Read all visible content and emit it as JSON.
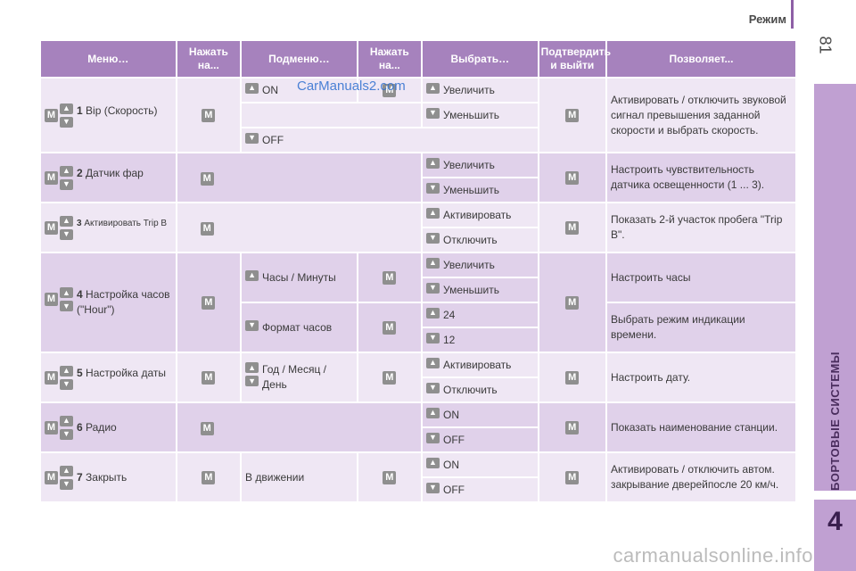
{
  "header": {
    "title": "Режим",
    "page_number": "81"
  },
  "side": {
    "label": "БОРТОВЫЕ СИСТЕМЫ",
    "chapter": "4"
  },
  "watermark": "CarManuals2.com",
  "footer": "carmanualsonline.info",
  "colors": {
    "header_bg": "#a682bd",
    "row_light": "#efe7f4",
    "row_dark": "#e0d1ea",
    "button": "#8f8f8f",
    "side_tab": "#c0a0d2"
  },
  "icons": {
    "m_button": "M",
    "up_button": "▲",
    "down_button": "▼"
  },
  "table": {
    "headers": [
      "Меню…",
      "Нажать на...",
      "Подменю…",
      "Нажать на...",
      "Выбрать…",
      "Подтвердить и выйти",
      "Позволяет..."
    ],
    "rows": [
      {
        "num": "1",
        "menu": "Bip (Скорость)",
        "submenu": "",
        "options": [
          "Увеличить",
          "Уменьшить"
        ],
        "submenu_values": [
          "ON",
          "OFF"
        ],
        "desc": "Активировать / отключить звуковой сигнал превышения заданной скорости и выбрать скорость."
      },
      {
        "num": "2",
        "menu": "Датчик фар",
        "options": [
          "Увеличить",
          "Уменьшить"
        ],
        "desc": "Настроить чувствительность датчика освещенности (1 ... 3)."
      },
      {
        "num": "3",
        "menu": "Активировать Trip B",
        "options": [
          "Активировать",
          "Отключить"
        ],
        "desc": "Показать 2-й участок пробега \"Trip B\"."
      },
      {
        "num": "4",
        "menu": "Настройка часов (\"Hour\")",
        "submenus": [
          "Часы / Минуты",
          "Формат часов"
        ],
        "options": [
          "Увеличить",
          "Уменьшить",
          "24",
          "12"
        ],
        "descs": [
          "Настроить часы",
          "Выбрать режим индикации времени."
        ]
      },
      {
        "num": "5",
        "menu": "Настройка даты",
        "submenu": "Год / Месяц / День",
        "options": [
          "Активировать",
          "Отключить"
        ],
        "desc": "Настроить дату."
      },
      {
        "num": "6",
        "menu": "Радио",
        "options": [
          "ON",
          "OFF"
        ],
        "desc": "Показать наименование станции."
      },
      {
        "num": "7",
        "menu": "Закрыть",
        "submenu": "В движении",
        "options": [
          "ON",
          "OFF"
        ],
        "desc": "Активировать / отключить автом. закрывание дверейпосле 20 км/ч."
      }
    ]
  }
}
